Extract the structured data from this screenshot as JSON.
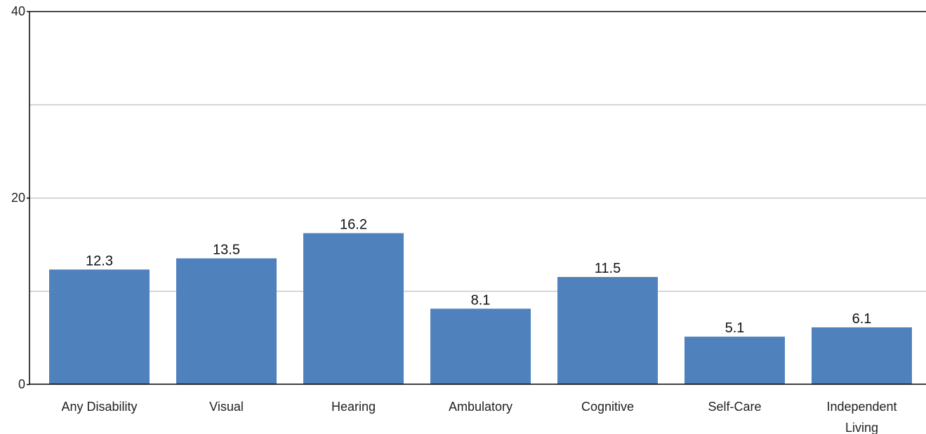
{
  "chart_data": {
    "type": "bar",
    "title": "",
    "xlabel": "",
    "ylabel": "",
    "categories": [
      "Any Disability",
      "Visual",
      "Hearing",
      "Ambulatory",
      "Cognitive",
      "Self-Care",
      "Independent Living"
    ],
    "values": [
      12.3,
      13.5,
      16.2,
      8.1,
      11.5,
      5.1,
      6.1
    ],
    "value_labels": [
      "12.3",
      "13.5",
      "16.2",
      "8.1",
      "11.5",
      "5.1",
      "6.1"
    ],
    "ylim": [
      0,
      40
    ],
    "y_tick_labels": [
      "0",
      "20",
      "40"
    ],
    "gridlines": [
      0,
      10,
      20,
      30,
      40
    ],
    "grid": true,
    "legend": "none",
    "colors": {
      "bar": "#4f81bd",
      "grid": "#c8c8c8",
      "axis": "#000000"
    }
  }
}
